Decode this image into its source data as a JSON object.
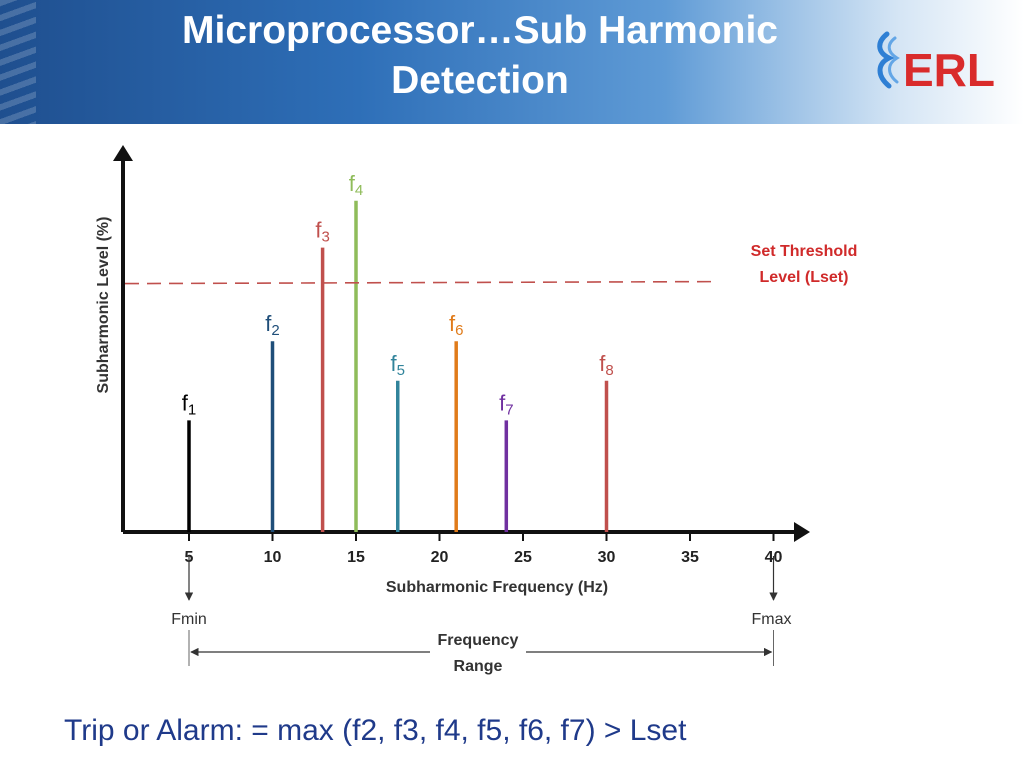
{
  "slide": {
    "title": "Microprocessor…Sub Harmonic Detection",
    "title_line1": "Microprocessor…Sub Harmonic",
    "title_line2": "Detection",
    "logo_text": "ERL",
    "formula": "Trip or Alarm: = max (f2, f3, f4, f5, f6, f7) > Lset"
  },
  "chart_data": {
    "type": "bar",
    "xlabel": "Subharmonic Frequency (Hz)",
    "ylabel": "Subharmonic Level (%)",
    "x_ticks": [
      5,
      10,
      15,
      20,
      25,
      30,
      35,
      40
    ],
    "xlim": [
      1,
      43
    ],
    "ylim": [
      0,
      100
    ],
    "grid": false,
    "series": [
      {
        "name": "f1",
        "sub": "1",
        "x": 5,
        "y": 31,
        "color": "#000000"
      },
      {
        "name": "f2",
        "sub": "2",
        "x": 10,
        "y": 53,
        "color": "#1f4e79"
      },
      {
        "name": "f3",
        "sub": "3",
        "x": 13,
        "y": 79,
        "color": "#c0504d"
      },
      {
        "name": "f4",
        "sub": "4",
        "x": 15,
        "y": 92,
        "color": "#8fbc5a"
      },
      {
        "name": "f5",
        "sub": "5",
        "x": 17.5,
        "y": 42,
        "color": "#31849b"
      },
      {
        "name": "f6",
        "sub": "6",
        "x": 21,
        "y": 53,
        "color": "#e07b1a"
      },
      {
        "name": "f7",
        "sub": "7",
        "x": 24,
        "y": 31,
        "color": "#7030a0"
      },
      {
        "name": "f8",
        "sub": "8",
        "x": 30,
        "y": 42,
        "color": "#c0504d"
      }
    ],
    "threshold": {
      "value": 69,
      "label_line1": "Set Threshold",
      "label_line2": "Level (Lset)",
      "color": "#c0504d"
    },
    "range": {
      "min_x": 5,
      "max_x": 40,
      "min_label": "Fmin",
      "max_label": "Fmax",
      "label_line1": "Frequency",
      "label_line2": "Range"
    }
  }
}
